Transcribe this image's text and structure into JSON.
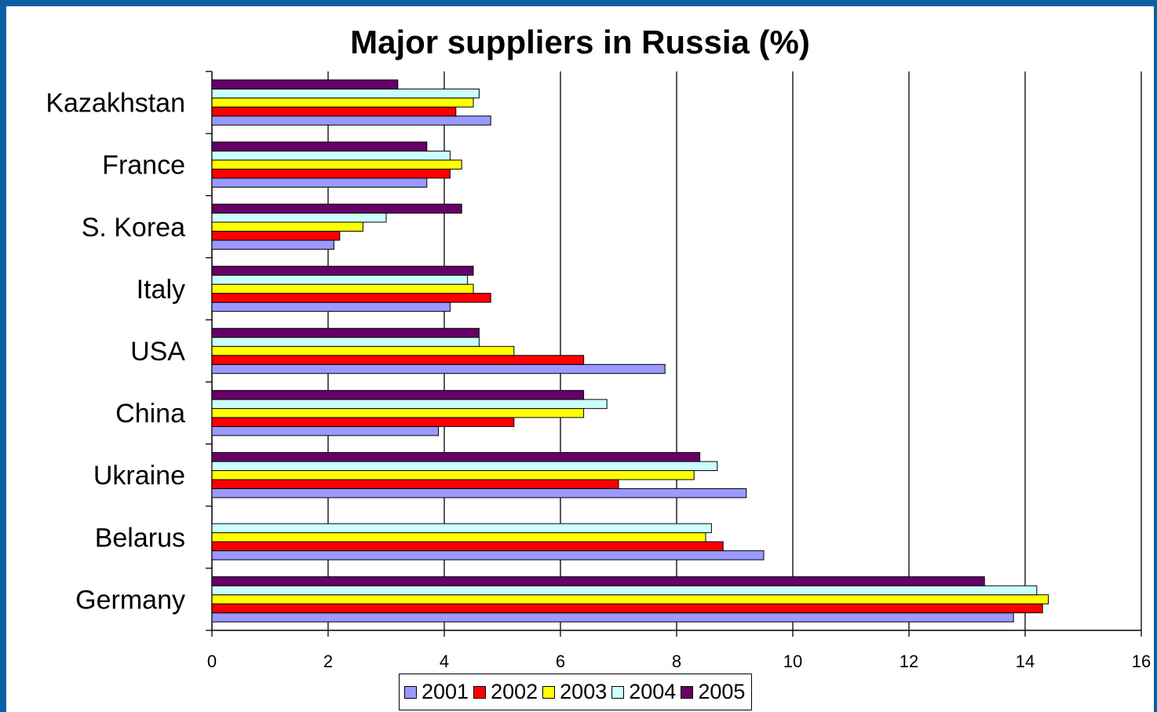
{
  "chart_data": {
    "type": "bar",
    "orientation": "horizontal",
    "title": "Major suppliers in Russia  (%)",
    "xlabel": "",
    "ylabel": "",
    "xlim": [
      0,
      16
    ],
    "xticks": [
      "0",
      "2",
      "4",
      "6",
      "8",
      "10",
      "12",
      "14",
      "16"
    ],
    "grid": "vertical major gridlines",
    "legend_position": "bottom",
    "categories": [
      "Kazakhstan",
      "France",
      "S. Korea",
      "Italy",
      "USA",
      "China",
      "Ukraine",
      "Belarus",
      "Germany"
    ],
    "series": [
      {
        "name": "2001",
        "color": "#9999ff",
        "values": [
          4.8,
          3.7,
          2.1,
          4.1,
          7.8,
          3.9,
          9.2,
          9.5,
          13.8
        ]
      },
      {
        "name": "2002",
        "color": "#ff0000",
        "values": [
          4.2,
          4.1,
          2.2,
          4.8,
          6.4,
          5.2,
          7.0,
          8.8,
          14.3
        ]
      },
      {
        "name": "2003",
        "color": "#ffff00",
        "values": [
          4.5,
          4.3,
          2.6,
          4.5,
          5.2,
          6.4,
          8.3,
          8.5,
          14.4
        ]
      },
      {
        "name": "2004",
        "color": "#ccffff",
        "values": [
          4.6,
          4.1,
          3.0,
          4.4,
          4.6,
          6.8,
          8.7,
          8.6,
          14.2
        ]
      },
      {
        "name": "2005",
        "color": "#660066",
        "values": [
          3.2,
          3.7,
          4.3,
          4.5,
          4.6,
          6.4,
          8.4,
          null,
          13.3
        ]
      }
    ]
  }
}
